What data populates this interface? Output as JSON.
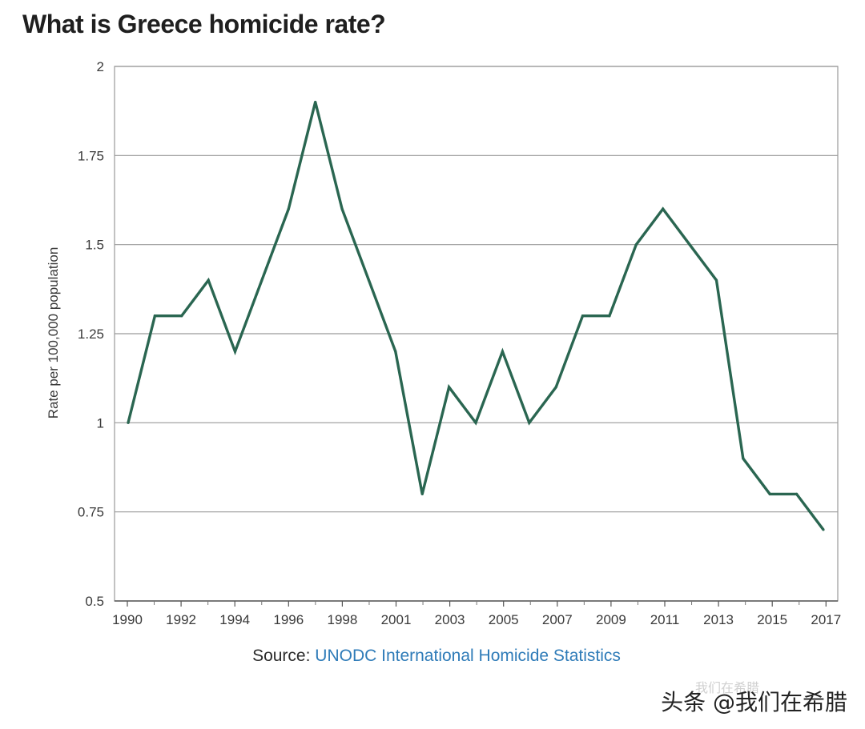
{
  "header": {
    "title": "What is Greece homicide rate?"
  },
  "chart_data": {
    "type": "line",
    "title": "What is Greece homicide rate?",
    "xlabel": "",
    "ylabel": "Rate per 100,000 population",
    "ylim": [
      0.5,
      2
    ],
    "grid": "horizontal",
    "y_ticks": [
      0.5,
      0.75,
      1,
      1.25,
      1.5,
      1.75,
      2
    ],
    "y_tick_labels": [
      "0.5",
      "0.75",
      "1",
      "1.25",
      "1.5",
      "1.75",
      "2"
    ],
    "x_tick_labels": [
      "1990",
      "1992",
      "1994",
      "1996",
      "1998",
      "2001",
      "2003",
      "2005",
      "2007",
      "2009",
      "2011",
      "2013",
      "2015",
      "2017"
    ],
    "line_color": "#2a6651",
    "series": [
      {
        "name": "Greece",
        "values": [
          1.0,
          1.3,
          1.3,
          1.4,
          1.2,
          1.4,
          1.6,
          1.9,
          1.6,
          1.4,
          1.2,
          0.8,
          1.1,
          1.0,
          1.2,
          1.0,
          1.1,
          1.3,
          1.3,
          1.5,
          1.6,
          1.5,
          1.4,
          0.9,
          0.8,
          0.8,
          0.7
        ]
      }
    ]
  },
  "source": {
    "label": "Source:",
    "link_text": "UNODC International Homicide Statistics"
  },
  "watermark": {
    "text": "头条 @我们在希腊",
    "ghost_text": "我们在希腊"
  }
}
